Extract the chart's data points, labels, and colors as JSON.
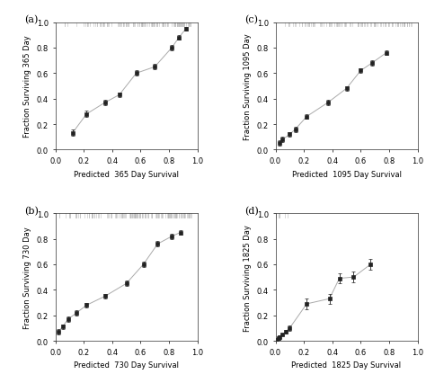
{
  "panel_a": {
    "label": "(a)",
    "x": [
      0.12,
      0.22,
      0.35,
      0.45,
      0.57,
      0.7,
      0.82,
      0.87,
      0.92
    ],
    "y": [
      0.13,
      0.28,
      0.37,
      0.43,
      0.6,
      0.65,
      0.8,
      0.88,
      0.95
    ],
    "yerr": [
      0.025,
      0.025,
      0.02,
      0.02,
      0.02,
      0.02,
      0.02,
      0.02,
      0.015
    ],
    "xlabel": "Predicted  365 Day Survival",
    "ylabel": "Fraction Surviving 365 Day",
    "xlim": [
      0.0,
      1.0
    ],
    "ylim": [
      0.0,
      1.0
    ],
    "xticks": [
      0.0,
      0.2,
      0.4,
      0.6,
      0.8,
      1.0
    ],
    "yticks": [
      0.0,
      0.2,
      0.4,
      0.6,
      0.8,
      1.0
    ],
    "rug_n": 120,
    "rug_seed": 10,
    "rug_alpha": 0.8,
    "rug_color": "#bbbbbb"
  },
  "panel_b": {
    "label": "(b)",
    "x": [
      0.02,
      0.05,
      0.09,
      0.15,
      0.22,
      0.35,
      0.5,
      0.62,
      0.72,
      0.82,
      0.88
    ],
    "y": [
      0.07,
      0.11,
      0.17,
      0.22,
      0.28,
      0.35,
      0.45,
      0.6,
      0.76,
      0.82,
      0.85
    ],
    "yerr": [
      0.02,
      0.02,
      0.02,
      0.02,
      0.02,
      0.02,
      0.02,
      0.02,
      0.02,
      0.02,
      0.02
    ],
    "xlabel": "Predicted  730 Day Survival",
    "ylabel": "Fraction Surviving 730 Day",
    "xlim": [
      0.0,
      1.0
    ],
    "ylim": [
      0.0,
      1.0
    ],
    "xticks": [
      0.0,
      0.2,
      0.4,
      0.6,
      0.8,
      1.0
    ],
    "yticks": [
      0.0,
      0.2,
      0.4,
      0.6,
      0.8,
      1.0
    ],
    "rug_n": 150,
    "rug_seed": 20,
    "rug_alpha": 0.8,
    "rug_color": "#bbbbbb"
  },
  "panel_c": {
    "label": "(c)",
    "x": [
      0.03,
      0.05,
      0.1,
      0.14,
      0.22,
      0.37,
      0.5,
      0.6,
      0.68,
      0.78
    ],
    "y": [
      0.05,
      0.08,
      0.12,
      0.16,
      0.26,
      0.37,
      0.48,
      0.62,
      0.68,
      0.76
    ],
    "yerr": [
      0.02,
      0.02,
      0.02,
      0.02,
      0.02,
      0.02,
      0.02,
      0.02,
      0.02,
      0.02
    ],
    "xlabel": "Predicted  1095 Day Survival",
    "ylabel": "Fraction Surviving 1095 Day",
    "xlim": [
      0.0,
      1.0
    ],
    "ylim": [
      0.0,
      1.0
    ],
    "xticks": [
      0.0,
      0.2,
      0.4,
      0.6,
      0.8,
      1.0
    ],
    "yticks": [
      0.0,
      0.2,
      0.4,
      0.6,
      0.8,
      1.0
    ],
    "rug_n": 100,
    "rug_seed": 30,
    "rug_alpha": 0.8,
    "rug_color": "#bbbbbb"
  },
  "panel_d": {
    "label": "(d)",
    "x": [
      0.01,
      0.02,
      0.03,
      0.05,
      0.07,
      0.1,
      0.22,
      0.38,
      0.45,
      0.55,
      0.67
    ],
    "y": [
      0.01,
      0.02,
      0.03,
      0.05,
      0.07,
      0.1,
      0.29,
      0.33,
      0.49,
      0.5,
      0.6
    ],
    "yerr": [
      0.01,
      0.01,
      0.01,
      0.01,
      0.015,
      0.02,
      0.04,
      0.04,
      0.04,
      0.04,
      0.04
    ],
    "xlabel": "Predicted  1825 Day Survival",
    "ylabel": "Fraction Surviving 1825 Day",
    "xlim": [
      0.0,
      1.0
    ],
    "ylim": [
      0.0,
      1.0
    ],
    "xticks": [
      0.0,
      0.2,
      0.4,
      0.6,
      0.8,
      1.0
    ],
    "yticks": [
      0.0,
      0.2,
      0.4,
      0.6,
      0.8,
      1.0
    ],
    "rug_n": 8,
    "rug_seed": 40,
    "rug_alpha": 0.8,
    "rug_color": "#bbbbbb"
  },
  "line_color": "#aaaaaa",
  "marker_color": "#222222",
  "marker_size": 3,
  "line_width": 0.7,
  "font_size": 6,
  "label_font_size": 8
}
